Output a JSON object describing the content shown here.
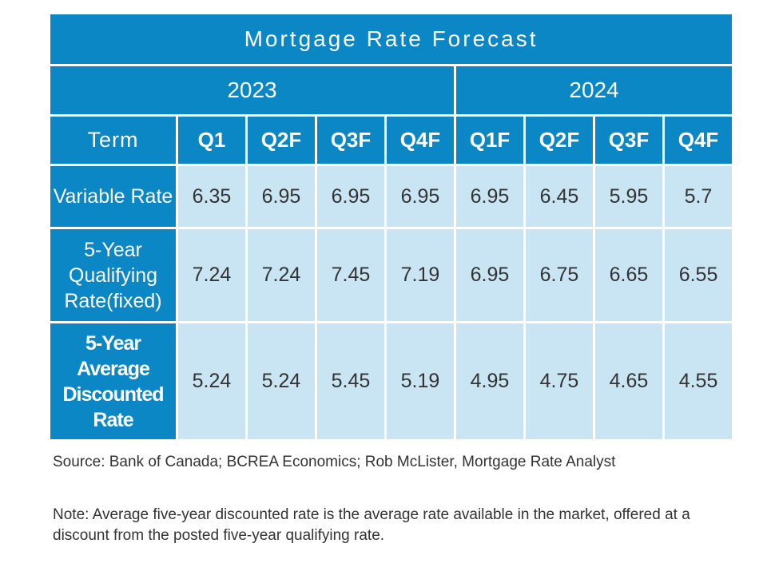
{
  "chart_data": {
    "type": "table",
    "title": "Mortgage Rate Forecast",
    "years": [
      {
        "label": "2023",
        "span": 4
      },
      {
        "label": "2024",
        "span": 4
      }
    ],
    "term_header": "Term",
    "quarters": [
      "Q1",
      "Q2F",
      "Q3F",
      "Q4F",
      "Q1F",
      "Q2F",
      "Q3F",
      "Q4F"
    ],
    "rows": [
      {
        "label": "Variable Rate",
        "values": [
          "6.35",
          "6.95",
          "6.95",
          "6.95",
          "6.95",
          "6.45",
          "5.95",
          "5.7"
        ]
      },
      {
        "label": "5-Year Qualifying Rate(fixed)",
        "values": [
          "7.24",
          "7.24",
          "7.45",
          "7.19",
          "6.95",
          "6.75",
          "6.65",
          "6.55"
        ]
      },
      {
        "label": "5-Year Average Discounted Rate",
        "values": [
          "5.24",
          "5.24",
          "5.45",
          "5.19",
          "4.95",
          "4.75",
          "4.65",
          "4.55"
        ]
      }
    ]
  },
  "footnotes": {
    "source": "Source: Bank of Canada; BCREA Economics; Rob McLister, Mortgage Rate Analyst",
    "note": "Note: Average five-year discounted rate is the average rate available in the market, offered at a discount from the posted five-year qualifying rate."
  },
  "colors": {
    "header_blue": "#0a87c4",
    "cell_light_blue": "#c9e5f3",
    "value_text": "#333333",
    "header_text": "#ffffff"
  }
}
